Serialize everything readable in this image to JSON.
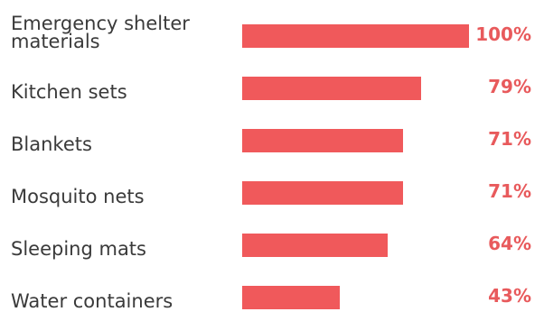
{
  "chart_data": {
    "type": "bar",
    "orientation": "horizontal",
    "title": "",
    "xlabel": "",
    "ylabel": "",
    "categories": [
      "Emergency shelter materials",
      "Kitchen sets",
      "Blankets",
      "Mosquito nets",
      "Sleeping mats",
      "Water containers"
    ],
    "values": [
      100,
      79,
      71,
      71,
      64,
      43
    ],
    "value_labels": [
      "100%",
      "79%",
      "71%",
      "71%",
      "64%",
      "43%"
    ],
    "xlim": [
      0,
      100
    ],
    "grid": false,
    "legend": "none",
    "colors": {
      "bar": "#f0595b",
      "value_text": "#e85a5c",
      "label_text": "#3a3a3a"
    }
  }
}
